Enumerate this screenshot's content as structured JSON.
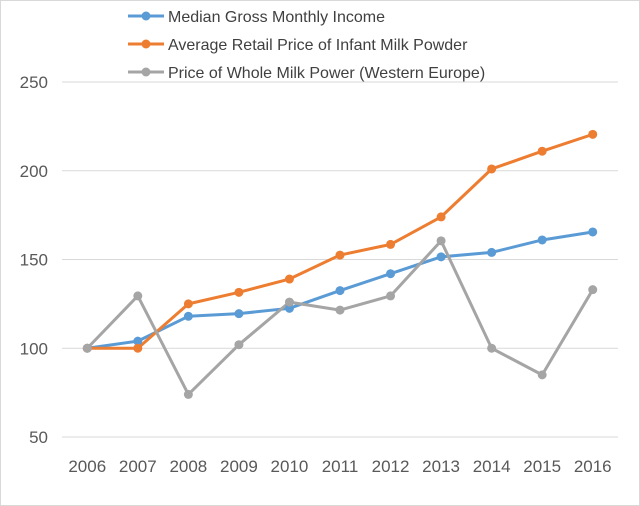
{
  "chart_data": {
    "type": "line",
    "title": "",
    "xlabel": "",
    "ylabel": "",
    "categories": [
      "2006",
      "2007",
      "2008",
      "2009",
      "2010",
      "2011",
      "2012",
      "2013",
      "2014",
      "2015",
      "2016"
    ],
    "ylim": [
      50,
      250
    ],
    "yticks": [
      50,
      100,
      150,
      200,
      250
    ],
    "grid": true,
    "legend_position": "top",
    "series": [
      {
        "name": "Median Gross Monthly Income",
        "color": "#5b9bd5",
        "values": [
          100,
          104,
          118,
          119.5,
          122.5,
          132.5,
          142,
          151.5,
          154,
          161,
          165.5
        ]
      },
      {
        "name": "Average Retail Price of Infant Milk Powder",
        "color": "#ed7d31",
        "values": [
          100,
          100,
          125,
          131.5,
          139,
          152.5,
          158.5,
          174,
          201,
          211,
          220.5
        ]
      },
      {
        "name": "Price of Whole Milk Power (Western Europe)",
        "color": "#a5a5a5",
        "values": [
          100,
          129.5,
          74,
          102,
          126,
          121.5,
          129.5,
          160.5,
          100,
          85,
          133
        ]
      }
    ]
  }
}
